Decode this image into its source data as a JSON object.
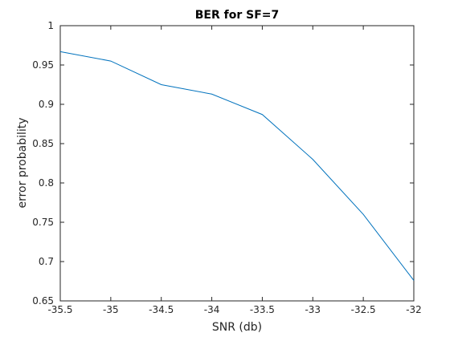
{
  "chart_data": {
    "type": "line",
    "title": "BER for SF=7",
    "xlabel": "SNR (db)",
    "ylabel": "error probability",
    "xlim": [
      -35.5,
      -32
    ],
    "ylim": [
      0.65,
      1
    ],
    "xticks": [
      -35.5,
      -35,
      -34.5,
      -34,
      -33.5,
      -33,
      -32.5,
      -32
    ],
    "xtick_labels": [
      "-35.5",
      "-35",
      "-34.5",
      "-34",
      "-33.5",
      "-33",
      "-32.5",
      "-32"
    ],
    "yticks": [
      0.65,
      0.7,
      0.75,
      0.8,
      0.85,
      0.9,
      0.95,
      1
    ],
    "ytick_labels": [
      "0.65",
      "0.7",
      "0.75",
      "0.8",
      "0.85",
      "0.9",
      "0.95",
      "1"
    ],
    "grid": false,
    "series": [
      {
        "color": "#0072bd",
        "x": [
          -35.5,
          -35,
          -34.5,
          -34,
          -33.5,
          -33,
          -32.5,
          -32
        ],
        "y": [
          0.967,
          0.955,
          0.925,
          0.913,
          0.887,
          0.83,
          0.76,
          0.676
        ]
      }
    ]
  }
}
